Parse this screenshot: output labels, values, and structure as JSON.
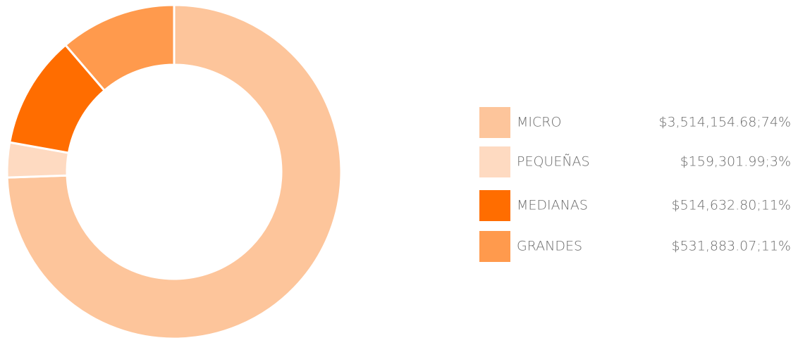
{
  "chart_data": {
    "type": "donut",
    "categories": [
      "MICRO",
      "PEQUEÑAS",
      "MEDIANAS",
      "GRANDES"
    ],
    "values": [
      3514154.68,
      159301.99,
      514632.8,
      531883.07
    ],
    "value_labels": [
      "$3,514,154.68;74%",
      "$159,301.99;3%",
      "$514,632.80;11%",
      "$531,883.07;11%"
    ],
    "colors": [
      "#fdc59b",
      "#fedac1",
      "#ff6d00",
      "#ff9a4d"
    ],
    "legend": "right"
  }
}
